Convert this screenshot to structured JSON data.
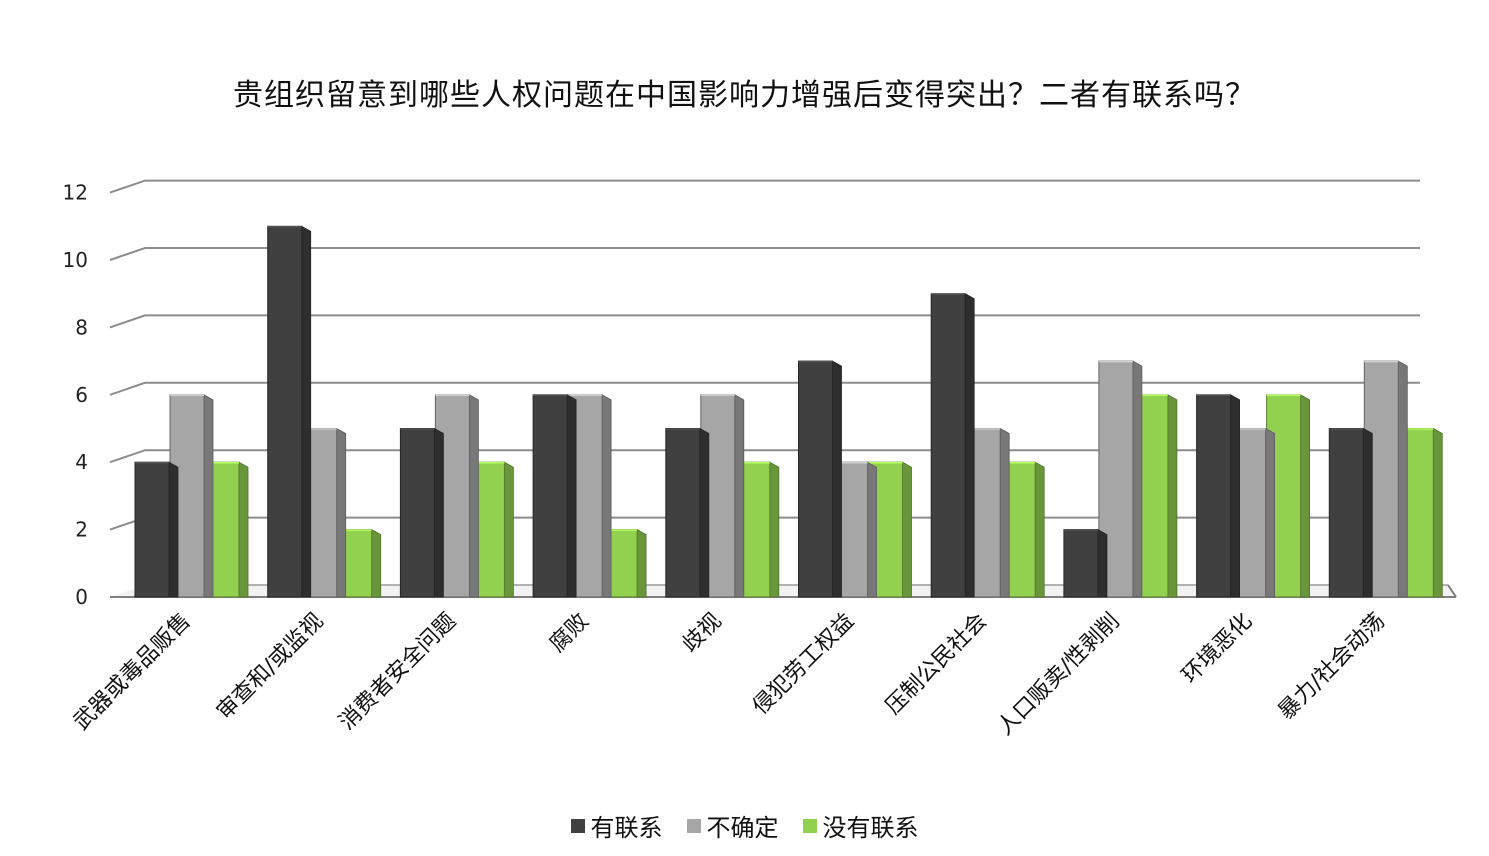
{
  "chart_data": {
    "type": "bar",
    "title": "贵组织留意到哪些人权问题在中国影响力增强后变得突出？二者有联系吗？",
    "xlabel": "",
    "ylabel": "",
    "ylim": [
      0,
      12
    ],
    "yticks": [
      "0",
      "2",
      "4",
      "6",
      "8",
      "10",
      "12"
    ],
    "grid": true,
    "legend_position": "bottom",
    "categories": [
      "武器或毒品贩售",
      "审查和/或监视",
      "消费者安全问题",
      "腐败",
      "歧视",
      "侵犯劳工权益",
      "压制公民社会",
      "人口贩卖/性剥削",
      "环境恶化",
      "暴力/社会动荡"
    ],
    "series": [
      {
        "name": "有联系",
        "color": "#404040",
        "values": [
          4,
          11,
          5,
          6,
          5,
          7,
          9,
          2,
          6,
          5
        ]
      },
      {
        "name": "不确定",
        "color": "#A6A6A6",
        "values": [
          6,
          5,
          6,
          6,
          6,
          4,
          5,
          7,
          5,
          7
        ]
      },
      {
        "name": "没有联系",
        "color": "#92D050",
        "values": [
          4,
          2,
          4,
          2,
          4,
          4,
          4,
          6,
          6,
          5
        ]
      }
    ]
  }
}
